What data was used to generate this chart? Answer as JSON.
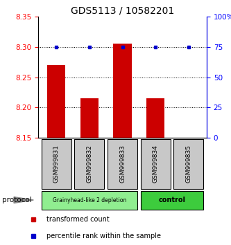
{
  "title": "GDS5113 / 10582201",
  "samples": [
    "GSM999831",
    "GSM999832",
    "GSM999833",
    "GSM999834",
    "GSM999835"
  ],
  "red_values": [
    8.27,
    8.215,
    8.305,
    8.215,
    8.15
  ],
  "blue_values": [
    75,
    75,
    75,
    75,
    75
  ],
  "ylim_left": [
    8.15,
    8.35
  ],
  "ylim_right": [
    0,
    100
  ],
  "yticks_left": [
    8.15,
    8.2,
    8.25,
    8.3,
    8.35
  ],
  "yticks_right": [
    0,
    25,
    50,
    75,
    100
  ],
  "ytick_labels_right": [
    "0",
    "25",
    "50",
    "75",
    "100%"
  ],
  "dotted_lines": [
    8.2,
    8.25,
    8.3
  ],
  "group1_indices": [
    0,
    1,
    2
  ],
  "group2_indices": [
    3,
    4
  ],
  "group1_label": "Grainyhead-like 2 depletion",
  "group2_label": "control",
  "group1_color": "#90EE90",
  "group2_color": "#3DCC3D",
  "bar_color": "#CC0000",
  "dot_color": "#0000CC",
  "legend_red_label": "transformed count",
  "legend_blue_label": "percentile rank within the sample",
  "protocol_label": "protocol",
  "bar_width": 0.55,
  "title_fontsize": 10,
  "tick_fontsize": 7.5,
  "label_fontsize": 6.5
}
